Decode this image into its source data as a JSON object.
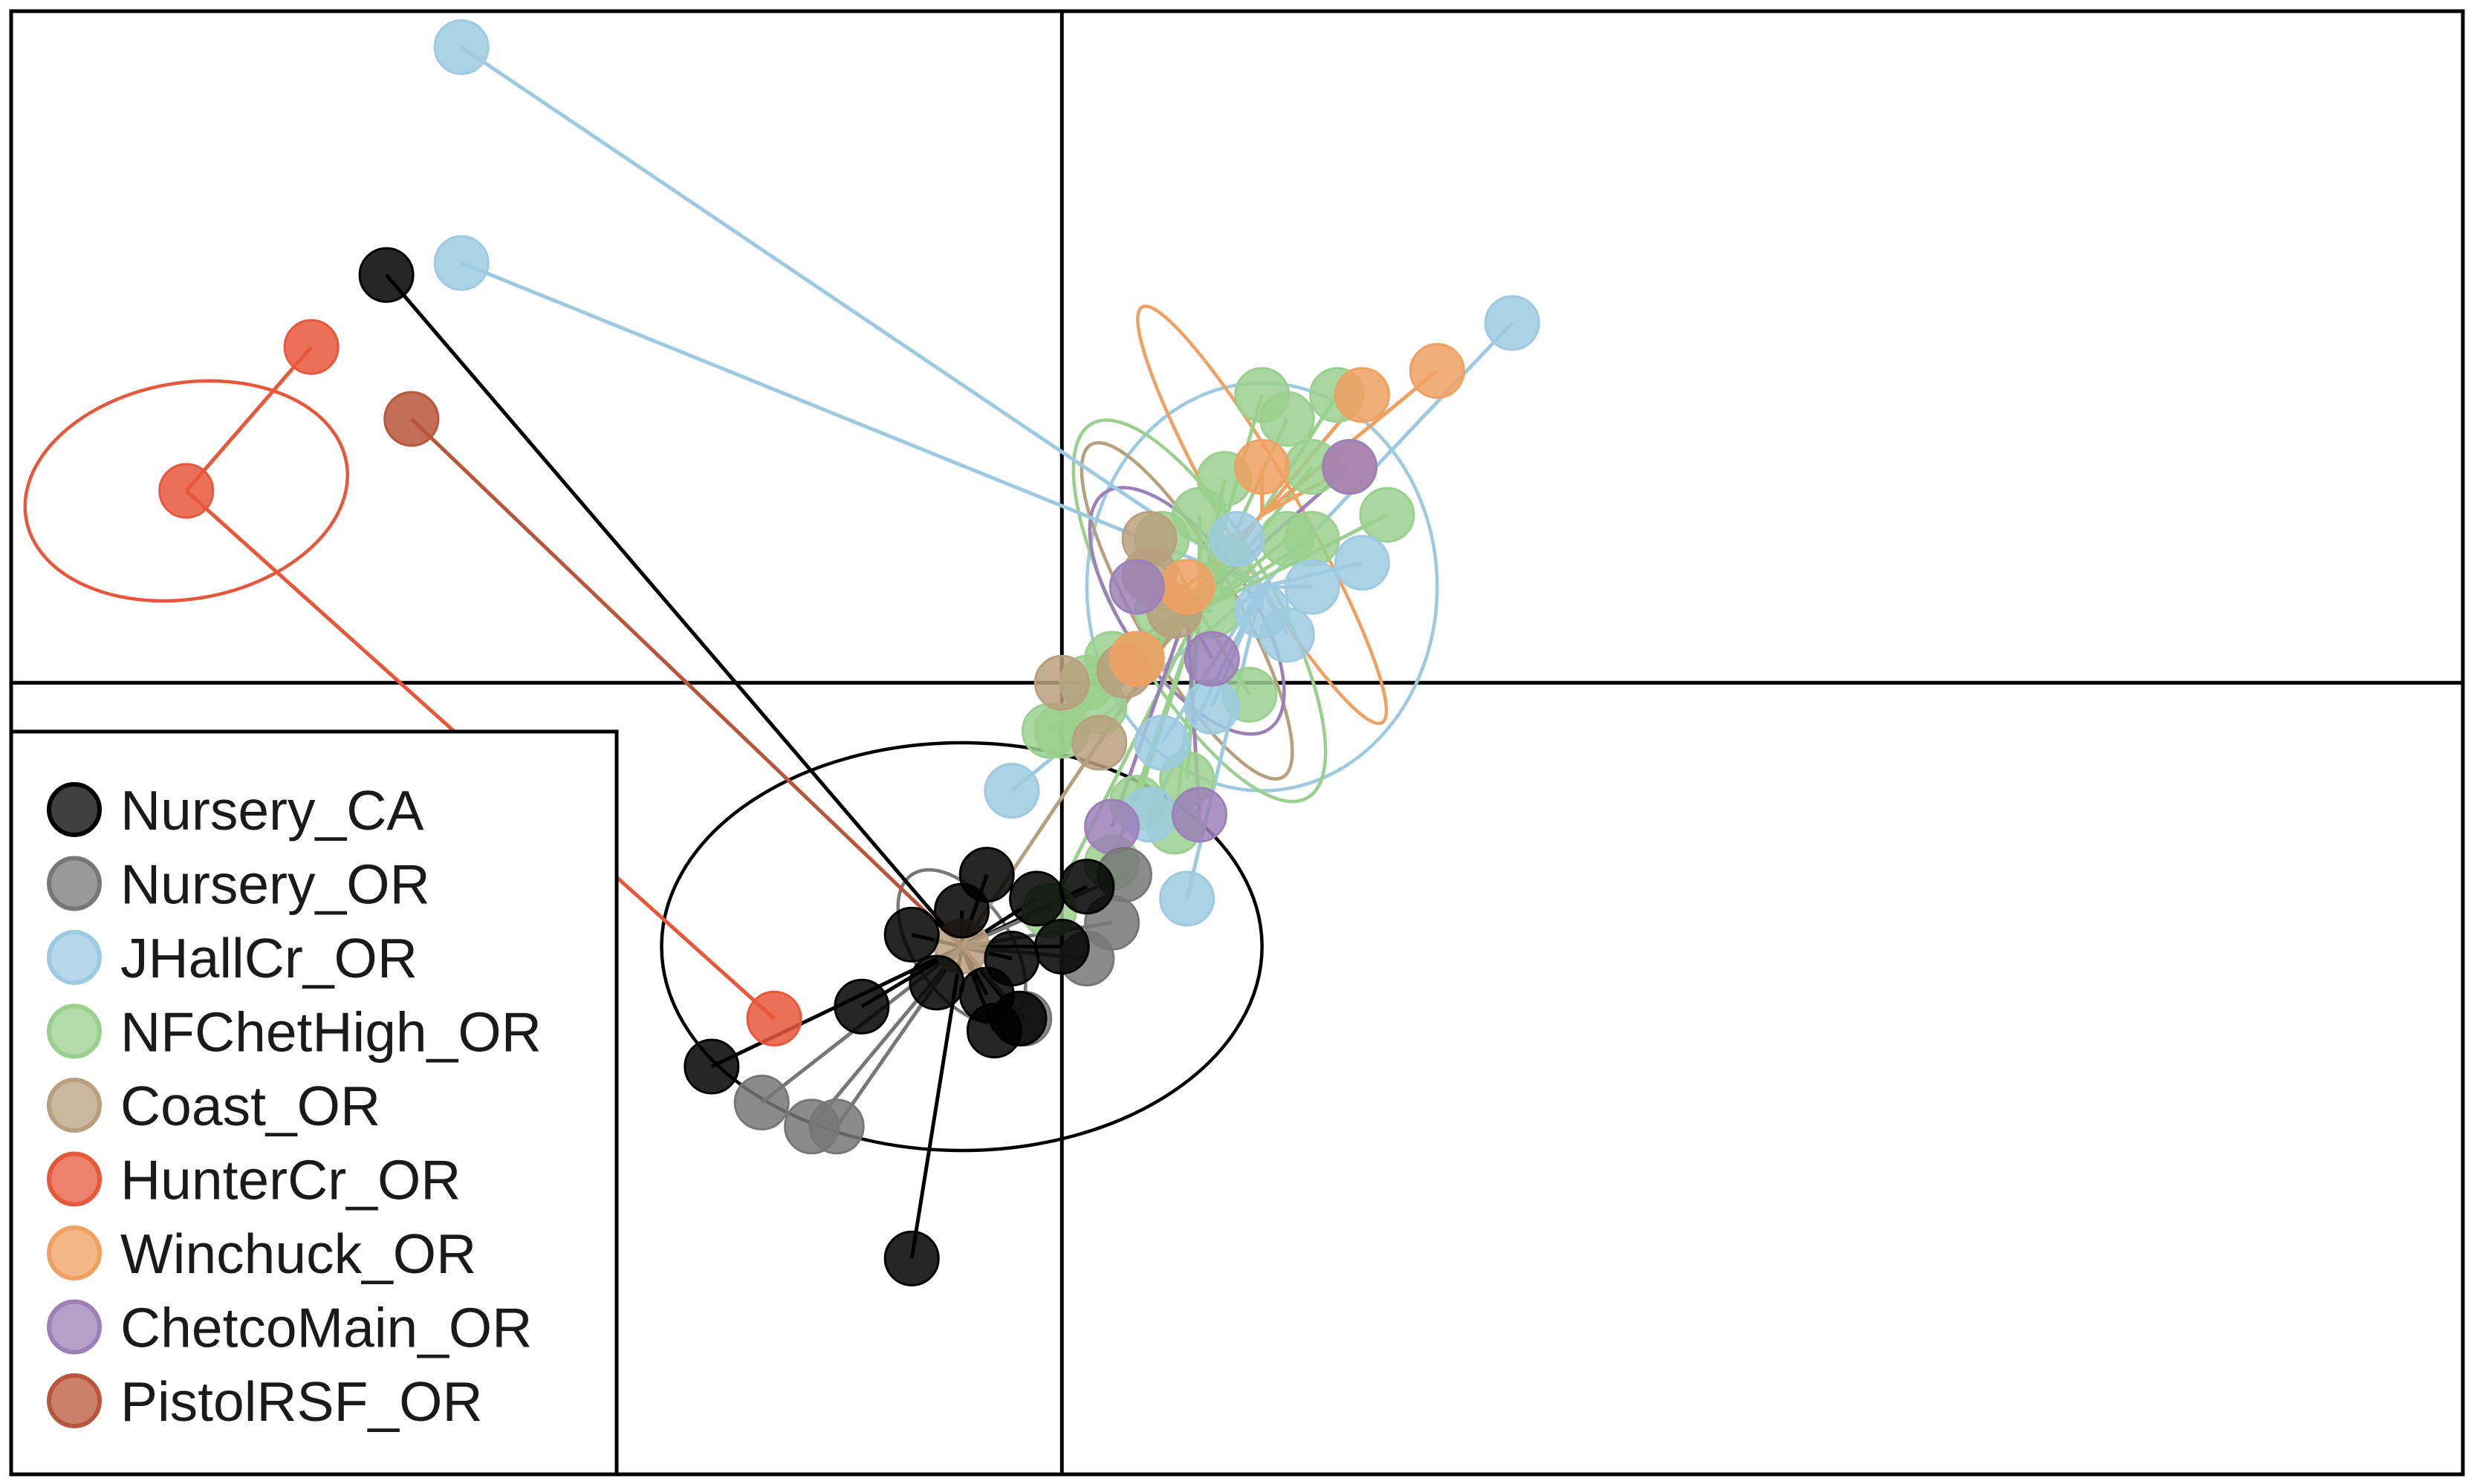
{
  "chart_data": {
    "type": "scatter",
    "title": "",
    "xlabel": "",
    "ylabel": "",
    "grid": false,
    "xlim": [
      -4.2,
      5.6
    ],
    "ylim": [
      -3.3,
      2.8
    ],
    "axes_cross": [
      0,
      0
    ],
    "legend": {
      "position": "bottom-left"
    },
    "series": [
      {
        "name": "Nursery_CA",
        "color": "#000000",
        "fill": "#000000",
        "centroid": [
          -0.4,
          -1.1
        ],
        "ellipse": {
          "rx": 1.2,
          "ry": 0.85,
          "angle": 0
        },
        "points": [
          [
            -2.7,
            1.7
          ],
          [
            -0.6,
            -1.05
          ],
          [
            -0.8,
            -1.35
          ],
          [
            -1.4,
            -1.6
          ],
          [
            -0.6,
            -2.4
          ],
          [
            -0.5,
            -1.25
          ],
          [
            -0.27,
            -1.45
          ],
          [
            -0.2,
            -1.15
          ],
          [
            0.0,
            -1.1
          ],
          [
            -0.3,
            -0.8
          ],
          [
            -0.1,
            -0.9
          ],
          [
            -0.3,
            -1.3
          ],
          [
            0.1,
            -0.85
          ],
          [
            -0.17,
            -1.4
          ],
          [
            -0.4,
            -0.95
          ]
        ]
      },
      {
        "name": "Nursery_OR",
        "color": "#777777",
        "fill": "#777777",
        "centroid": [
          -0.4,
          -1.1
        ],
        "ellipse": {
          "rx": 0.35,
          "ry": 0.2,
          "angle": -55
        },
        "points": [
          [
            -0.15,
            -1.4
          ],
          [
            0.25,
            -0.8
          ],
          [
            -1.2,
            -1.75
          ],
          [
            -1.0,
            -1.85
          ],
          [
            -0.9,
            -1.85
          ],
          [
            0.1,
            -1.15
          ],
          [
            0.2,
            -1.0
          ]
        ]
      },
      {
        "name": "JHallCr_OR",
        "color": "#9ecae1",
        "fill": "#9ecae1",
        "centroid": [
          0.8,
          0.4
        ],
        "ellipse": {
          "rx": 0.7,
          "ry": 0.85,
          "angle": 0
        },
        "points": [
          [
            -2.4,
            2.65
          ],
          [
            -2.4,
            1.75
          ],
          [
            1.8,
            1.5
          ],
          [
            0.6,
            -0.1
          ],
          [
            1.2,
            0.5
          ],
          [
            0.9,
            0.2
          ],
          [
            0.5,
            -0.9
          ],
          [
            0.35,
            -0.55
          ],
          [
            1.0,
            0.4
          ],
          [
            -0.2,
            -0.45
          ],
          [
            0.7,
            0.6
          ],
          [
            0.8,
            0.3
          ],
          [
            0.4,
            -0.25
          ]
        ]
      },
      {
        "name": "NFChetHigh_OR",
        "color": "#9ad08e",
        "fill": "#9ad08e",
        "centroid": [
          0.55,
          0.3
        ],
        "ellipse": {
          "rx": 0.3,
          "ry": 0.9,
          "angle": 30
        },
        "points": [
          [
            0.8,
            1.2
          ],
          [
            1.1,
            1.2
          ],
          [
            1.3,
            0.7
          ],
          [
            0.65,
            0.85
          ],
          [
            1.0,
            0.9
          ],
          [
            0.9,
            0.6
          ],
          [
            0.6,
            0.3
          ],
          [
            0.2,
            0.1
          ],
          [
            0.0,
            -0.2
          ],
          [
            -0.05,
            -0.2
          ],
          [
            0.4,
            0.3
          ],
          [
            0.5,
            -0.4
          ],
          [
            0.3,
            -0.5
          ],
          [
            0.1,
            0.0
          ],
          [
            0.15,
            -0.1
          ],
          [
            0.3,
            0.1
          ],
          [
            0.4,
            0.6
          ],
          [
            0.65,
            0.5
          ],
          [
            0.55,
            0.7
          ],
          [
            0.75,
            -0.05
          ],
          [
            0.45,
            -0.6
          ],
          [
            0.2,
            -0.75
          ],
          [
            -0.05,
            -0.95
          ],
          [
            0.9,
            1.1
          ],
          [
            1.0,
            0.6
          ]
        ]
      },
      {
        "name": "Coast_OR",
        "color": "#b8a07e",
        "fill": "#b8a07e",
        "centroid": [
          0.5,
          0.3
        ],
        "ellipse": {
          "rx": 0.2,
          "ry": 0.8,
          "angle": 30
        },
        "points": [
          [
            0.35,
            0.6
          ],
          [
            0.0,
            0.0
          ],
          [
            0.45,
            0.3
          ],
          [
            0.35,
            0.45
          ],
          [
            0.25,
            0.05
          ],
          [
            -0.4,
            -1.1
          ],
          [
            0.15,
            -0.25
          ]
        ]
      },
      {
        "name": "HunterCr_OR",
        "color": "#e8573a",
        "fill": "#e8573a",
        "centroid": [
          -3.5,
          0.8
        ],
        "ellipse": {
          "rx": 0.65,
          "ry": 0.45,
          "angle": 10
        },
        "points": [
          [
            -3.0,
            1.4
          ],
          [
            -3.5,
            0.8
          ],
          [
            -1.15,
            -1.4
          ]
        ]
      },
      {
        "name": "Winchuck_OR",
        "color": "#f0a060",
        "fill": "#f0a060",
        "centroid": [
          0.8,
          0.7
        ],
        "ellipse": {
          "rx": 0.15,
          "ry": 1.0,
          "angle": 30
        },
        "points": [
          [
            1.5,
            1.3
          ],
          [
            1.2,
            1.2
          ],
          [
            0.8,
            0.9
          ],
          [
            0.5,
            0.4
          ],
          [
            0.3,
            0.1
          ],
          [
            1.15,
            0.9
          ]
        ]
      },
      {
        "name": "ChetcoMain_OR",
        "color": "#9c80b8",
        "fill": "#9c80b8",
        "centroid": [
          0.5,
          0.3
        ],
        "ellipse": {
          "rx": 0.25,
          "ry": 0.6,
          "angle": 35
        },
        "points": [
          [
            0.3,
            0.4
          ],
          [
            0.6,
            0.1
          ],
          [
            0.2,
            -0.6
          ],
          [
            0.55,
            -0.55
          ],
          [
            1.15,
            0.9
          ]
        ]
      },
      {
        "name": "PistolRSF_OR",
        "color": "#b8553a",
        "fill": "#b8553a",
        "centroid": [
          -0.4,
          -1.1
        ],
        "points": [
          [
            -2.6,
            1.1
          ]
        ]
      }
    ]
  }
}
